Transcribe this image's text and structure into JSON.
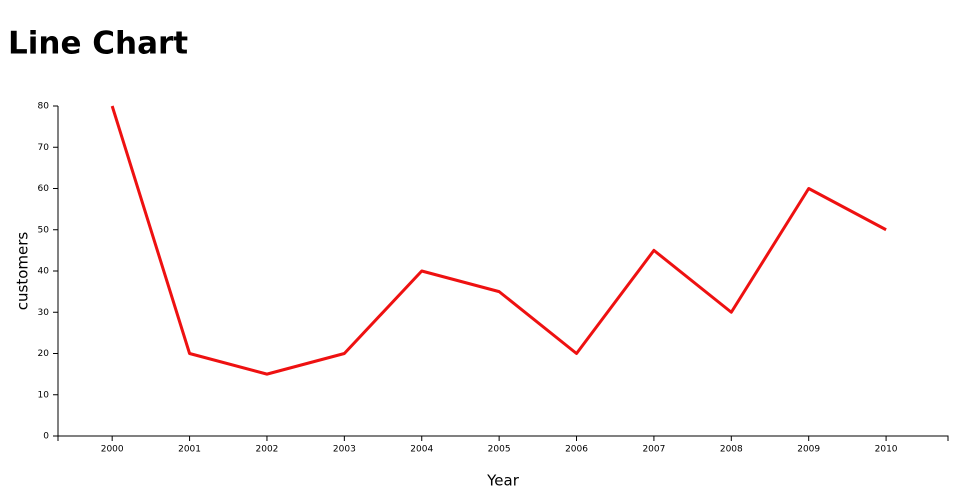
{
  "chart_data": {
    "type": "line",
    "title": "Line Chart",
    "x_label": "Year",
    "y_label": "customers",
    "x": [
      2000,
      2001,
      2002,
      2003,
      2004,
      2005,
      2006,
      2007,
      2008,
      2009,
      2010
    ],
    "series": [
      {
        "name": "customers",
        "color": "#ee1111",
        "values": [
          80,
          20,
          15,
          20,
          40,
          35,
          20,
          45,
          30,
          60,
          50
        ]
      }
    ],
    "xlim": [
      1999.3,
      2010.8
    ],
    "xticks": [
      2000,
      2001,
      2002,
      2003,
      2004,
      2005,
      2006,
      2007,
      2008,
      2009,
      2010
    ],
    "ylim": [
      0,
      80
    ],
    "yticks": [
      0,
      10,
      20,
      30,
      40,
      50,
      60,
      70,
      80
    ]
  }
}
